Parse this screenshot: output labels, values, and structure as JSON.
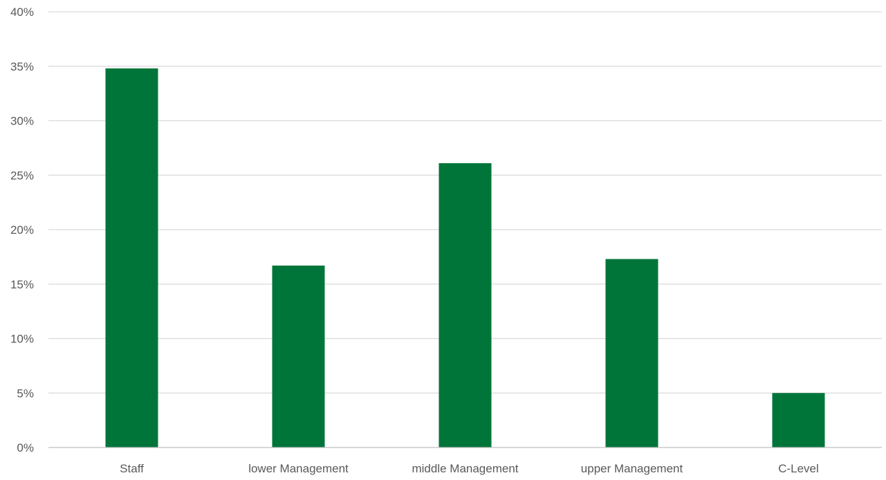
{
  "chart_data": {
    "type": "bar",
    "categories": [
      "Staff",
      "lower Management",
      "middle Management",
      "upper Management",
      "C-Level"
    ],
    "values": [
      34.8,
      16.7,
      26.1,
      17.3,
      5.0
    ],
    "ylim": [
      0,
      40
    ],
    "yticks": [
      "0%",
      "5%",
      "10%",
      "15%",
      "20%",
      "25%",
      "30%",
      "35%",
      "40%"
    ],
    "grid": true,
    "bar_color": "#00753a",
    "grid_color": "#d9d9d9"
  }
}
